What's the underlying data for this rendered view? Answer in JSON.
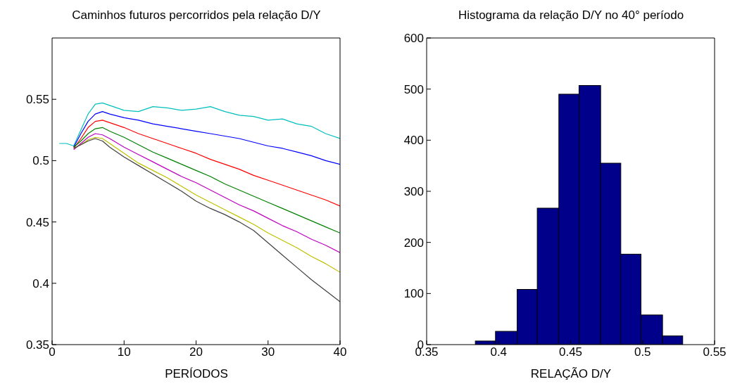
{
  "chart_data": [
    {
      "type": "line",
      "title": "Caminhos futuros percorridos pela relação D/Y",
      "xlabel": "PERÍODOS",
      "x": [
        1,
        2,
        3,
        4,
        5,
        6,
        7,
        8,
        10,
        12,
        14,
        16,
        18,
        20,
        22,
        24,
        26,
        28,
        30,
        32,
        34,
        36,
        38,
        40
      ],
      "xlim": [
        0,
        40
      ],
      "xticks": [
        0,
        10,
        20,
        30,
        40
      ],
      "ylim": [
        0.35,
        0.6
      ],
      "yticks": [
        0.35,
        0.4,
        0.45,
        0.5,
        0.55
      ],
      "grid": false,
      "legend": false,
      "marker": "none",
      "line_style": "solid",
      "series": [
        {
          "color": "#00bfbf",
          "values": [
            0.514,
            0.514,
            0.512,
            0.525,
            0.538,
            0.546,
            0.547,
            0.545,
            0.541,
            0.54,
            0.544,
            0.543,
            0.541,
            0.542,
            0.544,
            0.54,
            0.537,
            0.536,
            0.533,
            0.534,
            0.53,
            0.528,
            0.522,
            0.518
          ]
        },
        {
          "color": "#0000ff",
          "values": [
            null,
            null,
            0.511,
            0.522,
            0.532,
            0.538,
            0.54,
            0.538,
            0.535,
            0.533,
            0.53,
            0.528,
            0.526,
            0.524,
            0.522,
            0.52,
            0.518,
            0.515,
            0.512,
            0.51,
            0.507,
            0.504,
            0.5,
            0.497
          ]
        },
        {
          "color": "#ff0000",
          "values": [
            null,
            null,
            0.51,
            0.518,
            0.527,
            0.532,
            0.533,
            0.531,
            0.527,
            0.522,
            0.518,
            0.514,
            0.51,
            0.506,
            0.501,
            0.497,
            0.493,
            0.488,
            0.484,
            0.48,
            0.476,
            0.472,
            0.468,
            0.463
          ]
        },
        {
          "color": "#008000",
          "values": [
            null,
            null,
            0.511,
            0.516,
            0.522,
            0.526,
            0.527,
            0.524,
            0.519,
            0.513,
            0.507,
            0.502,
            0.497,
            0.492,
            0.487,
            0.481,
            0.476,
            0.471,
            0.466,
            0.461,
            0.456,
            0.451,
            0.446,
            0.441
          ]
        },
        {
          "color": "#bf00bf",
          "values": [
            null,
            null,
            0.509,
            0.514,
            0.519,
            0.522,
            0.521,
            0.518,
            0.511,
            0.505,
            0.499,
            0.493,
            0.487,
            0.482,
            0.476,
            0.47,
            0.464,
            0.459,
            0.453,
            0.447,
            0.442,
            0.436,
            0.431,
            0.425
          ]
        },
        {
          "color": "#bfbf00",
          "values": [
            null,
            null,
            0.51,
            0.513,
            0.517,
            0.519,
            0.518,
            0.514,
            0.506,
            0.498,
            0.492,
            0.486,
            0.479,
            0.472,
            0.466,
            0.46,
            0.454,
            0.448,
            0.441,
            0.435,
            0.429,
            0.422,
            0.416,
            0.409
          ]
        },
        {
          "color": "#404040",
          "values": [
            null,
            null,
            0.51,
            0.513,
            0.516,
            0.518,
            0.516,
            0.511,
            0.503,
            0.496,
            0.489,
            0.482,
            0.475,
            0.467,
            0.461,
            0.456,
            0.45,
            0.443,
            0.433,
            0.423,
            0.413,
            0.403,
            0.394,
            0.385
          ]
        }
      ]
    },
    {
      "type": "histogram",
      "title": "Histograma da relação D/Y no 40° período",
      "xlabel": "RELAÇÃO D/Y",
      "bins": [
        0.384,
        0.398,
        0.413,
        0.427,
        0.442,
        0.456,
        0.471,
        0.485,
        0.499,
        0.514,
        0.528
      ],
      "values": [
        7,
        26,
        108,
        267,
        490,
        507,
        355,
        177,
        58,
        17
      ],
      "color": "#00008b",
      "xlim": [
        0.35,
        0.55
      ],
      "xticks": [
        0.35,
        0.4,
        0.45,
        0.5,
        0.55
      ],
      "ylim": [
        0,
        600
      ],
      "yticks": [
        0,
        100,
        200,
        300,
        400,
        500,
        600
      ],
      "grid": false,
      "legend": false
    }
  ]
}
